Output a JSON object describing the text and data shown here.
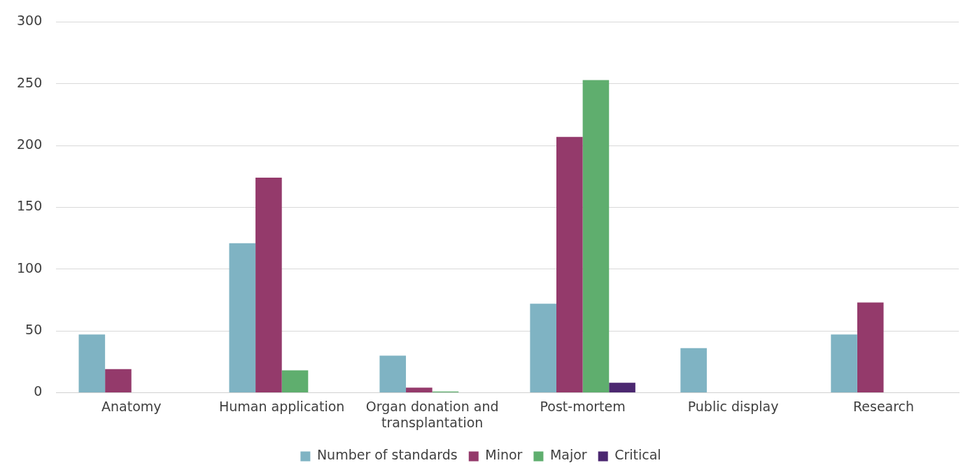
{
  "chart_data": {
    "type": "bar",
    "categories": [
      "Anatomy",
      "Human application",
      "Organ donation and transplantation",
      "Post-mortem",
      "Public display",
      "Research"
    ],
    "series": [
      {
        "name": "Number of standards",
        "color": "#7fb3c3",
        "values": [
          47,
          121,
          30,
          72,
          36,
          47
        ]
      },
      {
        "name": "Minor",
        "color": "#943a6b",
        "values": [
          19,
          174,
          4,
          207,
          0,
          73
        ]
      },
      {
        "name": "Major",
        "color": "#5fae6e",
        "values": [
          0,
          18,
          1,
          253,
          0,
          0
        ]
      },
      {
        "name": "Critical",
        "color": "#4b2770",
        "values": [
          0,
          0,
          0,
          8,
          0,
          0
        ]
      }
    ],
    "ylim": [
      0,
      300
    ],
    "yticks": [
      0,
      50,
      100,
      150,
      200,
      250,
      300
    ],
    "grid": "y",
    "legend": "bottom"
  }
}
